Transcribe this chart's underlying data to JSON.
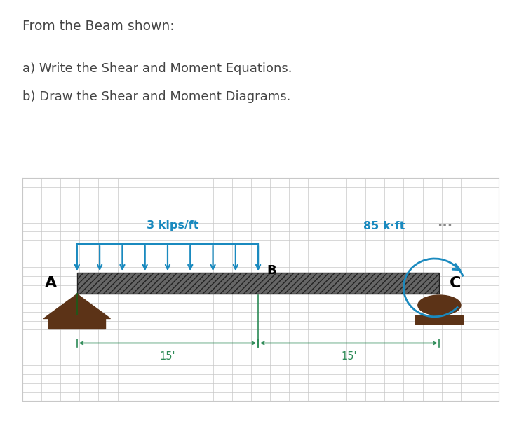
{
  "title_line1": "From the Beam shown:",
  "line_a": "a) Write the Shear and Moment Equations.",
  "line_b": "b) Draw the Shear and Moment Diagrams.",
  "load_label": "3 kips/ft",
  "moment_label": "85 k·ft",
  "label_A": "A",
  "label_B": "B",
  "label_C": "C",
  "dim1": "15'",
  "dim2": "15'",
  "bg_color": "#ffffff",
  "text_color": "#444444",
  "blue_color": "#1a8abf",
  "green_color": "#2e8b57",
  "brown_color": "#5c3317",
  "grid_color": "#c8c8c8",
  "beam_hatch_color": "#444444",
  "dots_color": "#888888",
  "n_arrows": 9,
  "figwidth": 7.2,
  "figheight": 6.12,
  "dpi": 100
}
